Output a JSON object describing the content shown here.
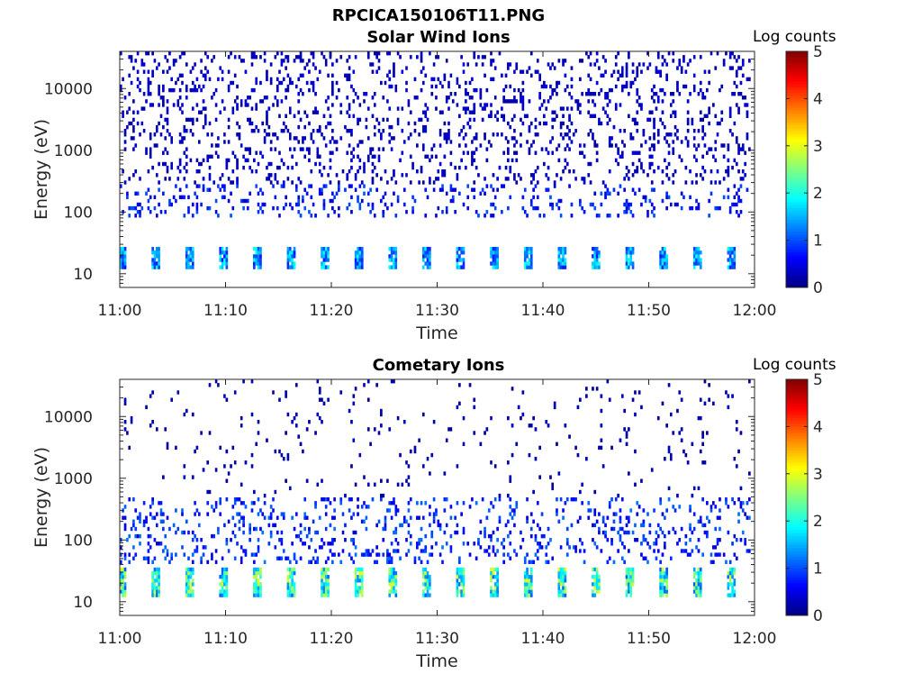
{
  "figure": {
    "title": "RPCICA150106T11.PNG"
  },
  "chart_data": [
    {
      "type": "heatmap",
      "title": "Solar Wind Ions",
      "xlabel": "Time",
      "ylabel": "Energy (eV)",
      "x_ticks": [
        "11:00",
        "11:10",
        "11:20",
        "11:30",
        "11:40",
        "11:50",
        "12:00"
      ],
      "x_range": [
        "11:00",
        "12:00"
      ],
      "y_scale": "log",
      "y_ticks": [
        10,
        100,
        1000,
        10000
      ],
      "y_tick_labels": [
        "10",
        "100",
        "1000",
        "10000"
      ],
      "y_range": [
        6,
        40000
      ],
      "colorbar": {
        "label": "Log counts",
        "range": [
          0,
          5
        ],
        "ticks": [
          "0",
          "1",
          "2",
          "3",
          "4",
          "5"
        ],
        "colormap": "jet"
      },
      "features": {
        "bands": [
          {
            "energy_range_eV": [
              12,
              28
            ],
            "log_counts_peak": 2.0,
            "note": "periodic low-energy bursts about every 3.2 min"
          }
        ],
        "scattered": [
          {
            "energy_range_eV": [
              80,
              300
            ],
            "log_counts": 0.7
          },
          {
            "energy_range_eV": [
              300,
              40000
            ],
            "log_counts": 0.3
          }
        ]
      }
    },
    {
      "type": "heatmap",
      "title": "Cometary Ions",
      "xlabel": "Time",
      "ylabel": "Energy (eV)",
      "x_ticks": [
        "11:00",
        "11:10",
        "11:20",
        "11:30",
        "11:40",
        "11:50",
        "12:00"
      ],
      "x_range": [
        "11:00",
        "12:00"
      ],
      "y_scale": "log",
      "y_ticks": [
        10,
        100,
        1000,
        10000
      ],
      "y_tick_labels": [
        "10",
        "100",
        "1000",
        "10000"
      ],
      "y_range": [
        6,
        40000
      ],
      "colorbar": {
        "label": "Log counts",
        "range": [
          0,
          5
        ],
        "ticks": [
          "0",
          "1",
          "2",
          "3",
          "4",
          "5"
        ],
        "colormap": "jet"
      },
      "features": {
        "bands": [
          {
            "energy_range_eV": [
              12,
              35
            ],
            "log_counts_peak": 3.0,
            "note": "periodic low-energy bursts about every 3.2 min"
          }
        ],
        "scattered": [
          {
            "energy_range_eV": [
              40,
              500
            ],
            "log_counts": 0.8
          },
          {
            "energy_range_eV": [
              500,
              40000
            ],
            "log_counts": 0.2
          }
        ]
      }
    }
  ]
}
